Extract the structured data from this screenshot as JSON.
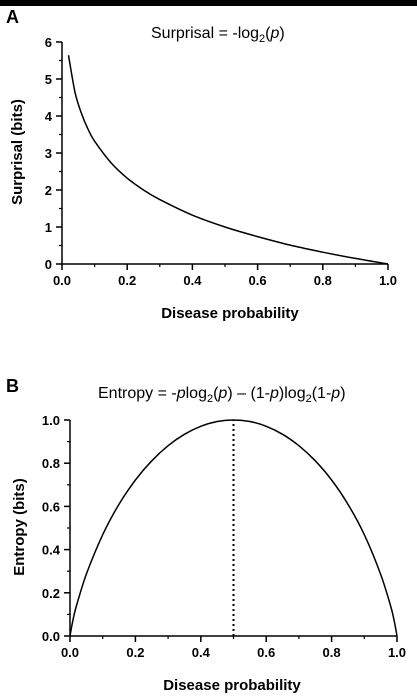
{
  "panels": [
    {
      "letter": "A",
      "equation": {
        "prefix": "Surprisal = -log",
        "sub": "2",
        "open": "(",
        "var": "p",
        "close": ")"
      }
    },
    {
      "letter": "B",
      "equation": {
        "prefix": "Entropy = -",
        "p1": "p",
        "log1": "log",
        "sub1": "2",
        "paren1_open": "(",
        "p2": "p",
        "paren1_close": ")",
        "dash": " – (1-",
        "p3": "p",
        "mid": ")log",
        "sub2": "2",
        "paren2_open": "(1-",
        "p4": "p",
        "paren2_close": ")"
      }
    }
  ],
  "chart_data": [
    {
      "type": "line",
      "title": "Surprisal = -log2(p)",
      "xlabel": "Disease probability",
      "ylabel": "Surprisal (bits)",
      "xlim": [
        0,
        1
      ],
      "ylim": [
        0,
        6
      ],
      "xticks": [
        "0.0",
        "0.2",
        "0.4",
        "0.6",
        "0.8",
        "1.0"
      ],
      "yticks": [
        "0",
        "1",
        "2",
        "3",
        "4",
        "5",
        "6"
      ],
      "x": [
        0.02,
        0.04,
        0.06,
        0.08,
        0.1,
        0.15,
        0.2,
        0.25,
        0.3,
        0.4,
        0.5,
        0.6,
        0.7,
        0.8,
        0.9,
        1.0
      ],
      "y": [
        5.64,
        4.64,
        4.06,
        3.64,
        3.32,
        2.74,
        2.32,
        2.0,
        1.74,
        1.32,
        1.0,
        0.74,
        0.51,
        0.32,
        0.15,
        0.0
      ],
      "grid": false,
      "color": "#000000"
    },
    {
      "type": "line",
      "title": "Entropy = -plog2(p) – (1-p)log2(1-p)",
      "xlabel": "Disease probability",
      "ylabel": "Entropy (bits)",
      "xlim": [
        0,
        1
      ],
      "ylim": [
        0,
        1
      ],
      "xticks": [
        "0.0",
        "0.2",
        "0.4",
        "0.6",
        "0.8",
        "1.0"
      ],
      "yticks": [
        "0.0",
        "0.2",
        "0.4",
        "0.6",
        "0.8",
        "1.0"
      ],
      "x": [
        0.0,
        0.01,
        0.02,
        0.05,
        0.1,
        0.15,
        0.2,
        0.25,
        0.3,
        0.35,
        0.4,
        0.45,
        0.5,
        0.55,
        0.6,
        0.65,
        0.7,
        0.75,
        0.8,
        0.85,
        0.9,
        0.95,
        0.98,
        0.99,
        1.0
      ],
      "y": [
        0.0,
        0.081,
        0.141,
        0.286,
        0.469,
        0.61,
        0.722,
        0.811,
        0.881,
        0.934,
        0.971,
        0.993,
        1.0,
        0.993,
        0.971,
        0.934,
        0.881,
        0.811,
        0.722,
        0.61,
        0.469,
        0.286,
        0.141,
        0.081,
        0.0
      ],
      "reference_line": {
        "x": 0.5,
        "y_from": 0,
        "y_to": 1.0,
        "style": "dotted"
      },
      "grid": false,
      "color": "#000000"
    }
  ]
}
